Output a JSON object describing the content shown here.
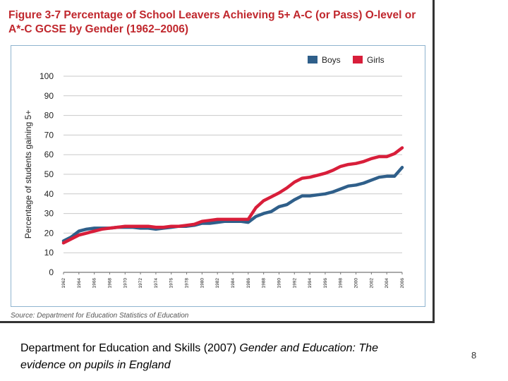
{
  "figure": {
    "title": "Figure 3-7 Percentage of School Leavers Achieving 5+ A-C (or Pass) O-level or A*-C GCSE by Gender (1962–2006)",
    "source": "Source: Department for Education Statistics of Education"
  },
  "caption": {
    "plain": "Department for Education and Skills (2007) ",
    "italic": "Gender and Education: The evidence on pupils in England"
  },
  "page_number": "8",
  "chart_data": {
    "type": "line",
    "title": "Figure 3-7 Percentage of School Leavers Achieving 5+ A-C (or Pass) O-level or A*-C GCSE by Gender (1962–2006)",
    "xlabel": "",
    "ylabel": "Percentage of students gaining 5+",
    "ylim": [
      0,
      100
    ],
    "yticks": [
      0,
      10,
      20,
      30,
      40,
      50,
      60,
      70,
      80,
      90,
      100
    ],
    "xlim": [
      1962,
      2006
    ],
    "xticks": [
      1962,
      1964,
      1966,
      1968,
      1970,
      1972,
      1974,
      1976,
      1978,
      1980,
      1982,
      1984,
      1986,
      1988,
      1990,
      1992,
      1994,
      1996,
      1998,
      2000,
      2002,
      2004,
      2006
    ],
    "grid": true,
    "legend_position": "top-right",
    "series": [
      {
        "name": "Boys",
        "color": "#2f5f8a",
        "x": [
          1962,
          1963,
          1964,
          1965,
          1966,
          1967,
          1968,
          1969,
          1970,
          1971,
          1972,
          1973,
          1974,
          1975,
          1976,
          1977,
          1978,
          1979,
          1980,
          1981,
          1982,
          1983,
          1984,
          1985,
          1986,
          1987,
          1988,
          1989,
          1990,
          1991,
          1992,
          1993,
          1994,
          1995,
          1996,
          1997,
          1998,
          1999,
          2000,
          2001,
          2002,
          2003,
          2004,
          2005,
          2006
        ],
        "values": [
          16,
          18,
          21,
          22,
          22.5,
          22.5,
          22.5,
          23,
          23,
          23,
          22.5,
          22.5,
          22,
          22.5,
          23,
          23.5,
          23.5,
          24,
          25,
          25,
          25.5,
          26,
          26,
          26,
          25.5,
          28.5,
          30,
          31,
          33.5,
          34.5,
          37,
          39,
          39,
          39.5,
          40,
          41,
          42.5,
          44,
          44.5,
          45.5,
          47,
          48.5,
          49,
          49,
          53.5
        ]
      },
      {
        "name": "Girls",
        "color": "#d81e3a",
        "x": [
          1962,
          1963,
          1964,
          1965,
          1966,
          1967,
          1968,
          1969,
          1970,
          1971,
          1972,
          1973,
          1974,
          1975,
          1976,
          1977,
          1978,
          1979,
          1980,
          1981,
          1982,
          1983,
          1984,
          1985,
          1986,
          1987,
          1988,
          1989,
          1990,
          1991,
          1992,
          1993,
          1994,
          1995,
          1996,
          1997,
          1998,
          1999,
          2000,
          2001,
          2002,
          2003,
          2004,
          2005,
          2006
        ],
        "values": [
          15,
          17,
          19,
          20,
          21,
          22,
          22.5,
          23,
          23.5,
          23.5,
          23.5,
          23.5,
          23,
          23,
          23.5,
          23.5,
          24,
          24.5,
          26,
          26.5,
          27,
          27,
          27,
          27,
          27,
          33,
          36.5,
          38.5,
          40.5,
          43,
          46,
          48,
          48.5,
          49.5,
          50.5,
          52,
          54,
          55,
          55.5,
          56.5,
          58,
          59,
          59,
          60.5,
          63.5
        ]
      }
    ]
  }
}
